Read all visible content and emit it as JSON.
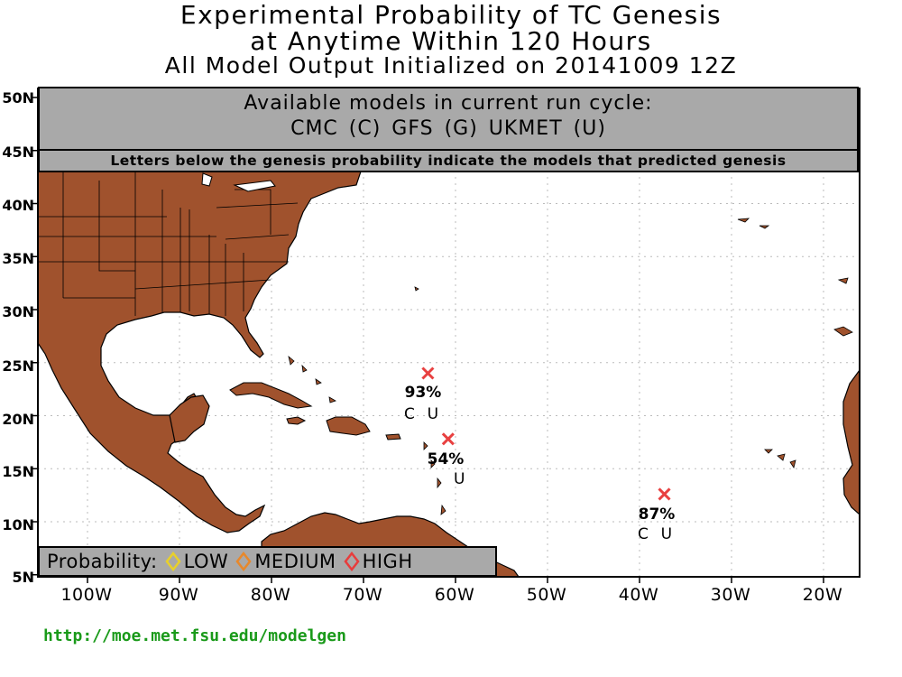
{
  "title": {
    "line1": "Experimental Probability of TC Genesis",
    "line2": "at Anytime Within 120 Hours",
    "line3": "All Model Output Initialized on 20141009 12Z"
  },
  "models_box": {
    "heading": "Available models in current run cycle:",
    "models": "CMC (C) GFS (G)  UKMET (U)",
    "note": "Letters below the genesis probability indicate the models that predicted genesis"
  },
  "legend": {
    "label": "Probability:",
    "items": [
      {
        "label": "LOW",
        "color": "#e8d02a"
      },
      {
        "label": "MEDIUM",
        "color": "#e8882a"
      },
      {
        "label": "HIGH",
        "color": "#e83c3c"
      }
    ]
  },
  "axes": {
    "lat_labels": [
      "50N",
      "45N",
      "40N",
      "35N",
      "30N",
      "25N",
      "20N",
      "15N",
      "10N",
      "5N"
    ],
    "lon_labels": [
      "100W",
      "90W",
      "80W",
      "70W",
      "60W",
      "50W",
      "40W",
      "30W",
      "20W"
    ]
  },
  "storms": [
    {
      "probability": "93%",
      "models": "C  U",
      "lat": 24.0,
      "lon": -63.0,
      "level": "HIGH"
    },
    {
      "probability": "54%",
      "models": "U",
      "lat": 17.8,
      "lon": -60.8,
      "level": "HIGH"
    },
    {
      "probability": "87%",
      "models": "C  U",
      "lat": 12.6,
      "lon": -37.3,
      "level": "HIGH"
    }
  ],
  "colors": {
    "land": "#a0522d",
    "box_gray": "#a9a9a9",
    "marker": "#e84040",
    "url": "#1a9a1a"
  },
  "url": "http://moe.met.fsu.edu/modelgen"
}
